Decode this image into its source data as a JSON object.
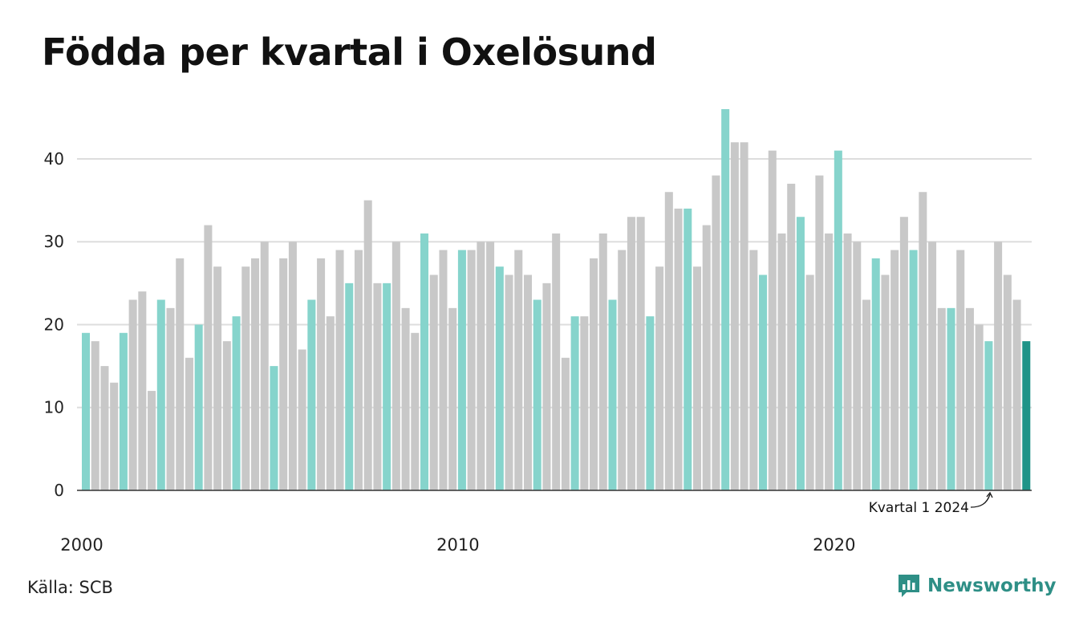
{
  "header": {
    "title": "Födda per kvartal i Oxelösund"
  },
  "footer": {
    "source": "Källa: SCB",
    "brand": "Newsworthy"
  },
  "colors": {
    "q1": "#86d4cc",
    "other": "#c8c8c8",
    "highlight": "#1e9488",
    "grid": "#dddddd",
    "axis": "#333333",
    "brand": "#2e8f86"
  },
  "chart_data": {
    "type": "bar",
    "title": "Födda per kvartal i Oxelösund",
    "xlabel": "",
    "ylabel": "",
    "ylim": [
      0,
      46
    ],
    "yticks": [
      0,
      10,
      20,
      30,
      40
    ],
    "xtick_labels": [
      "2000",
      "2010",
      "2020"
    ],
    "grid": true,
    "start_period": "2000 Q1",
    "end_period": "2024 Q1",
    "values": [
      19,
      18,
      15,
      13,
      19,
      23,
      24,
      12,
      23,
      22,
      28,
      16,
      20,
      32,
      27,
      18,
      21,
      27,
      28,
      30,
      15,
      28,
      30,
      17,
      23,
      28,
      21,
      29,
      25,
      29,
      35,
      25,
      25,
      30,
      22,
      19,
      31,
      26,
      29,
      22,
      29,
      29,
      30,
      30,
      27,
      26,
      29,
      26,
      23,
      25,
      31,
      16,
      21,
      21,
      28,
      31,
      23,
      29,
      33,
      33,
      21,
      27,
      36,
      34,
      34,
      27,
      32,
      38,
      46,
      42,
      42,
      29,
      26,
      41,
      31,
      37,
      33,
      26,
      38,
      31,
      41,
      31,
      30,
      23,
      28,
      26,
      29,
      33,
      29,
      36,
      30,
      22,
      22,
      29,
      22,
      20,
      18,
      30,
      26,
      23,
      18
    ],
    "annotation": "Kvartal 1 2024"
  }
}
